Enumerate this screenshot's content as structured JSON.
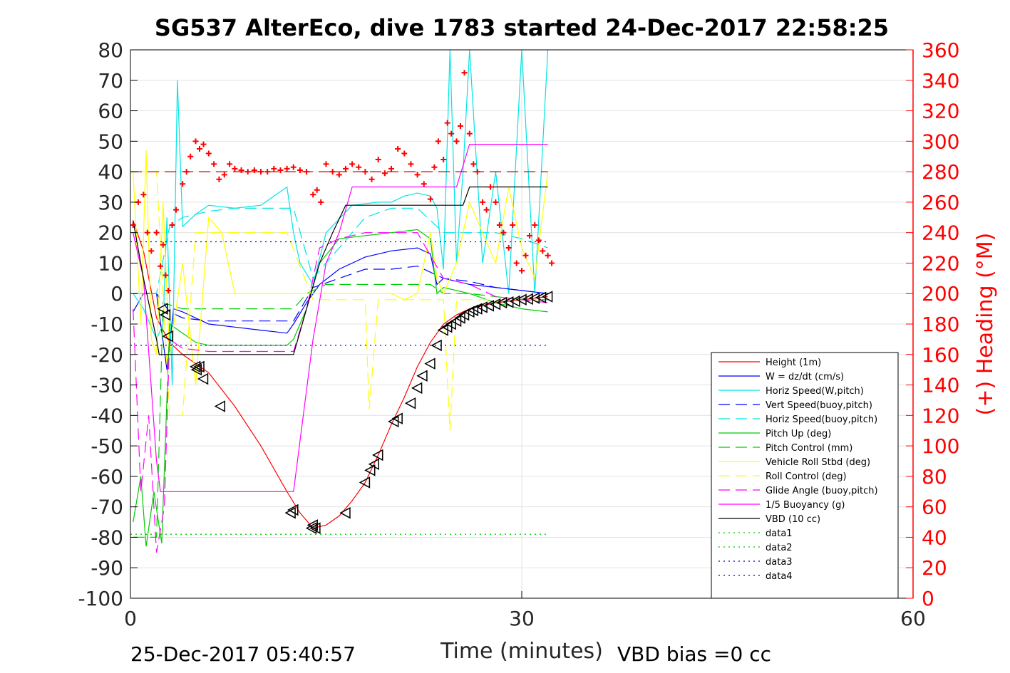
{
  "chart_data": {
    "type": "line",
    "title": "SG537 AlterEco, dive 1783 started 24-Dec-2017 22:58:25",
    "xlabel": "Time (minutes)",
    "ylabel_right": "(+) Heading (°M)",
    "footer_left": "25-Dec-2017 05:40:57",
    "footer_right": "VBD bias =0 cc",
    "xlim": [
      0,
      60
    ],
    "ylim": [
      -100,
      80
    ],
    "y2lim": [
      0,
      360
    ],
    "xticks": [
      "0",
      "30",
      "60"
    ],
    "xtick_values": [
      0,
      30,
      60
    ],
    "yticks": [
      "-100",
      "-90",
      "-80",
      "-70",
      "-60",
      "-50",
      "-40",
      "-30",
      "-20",
      "-10",
      "0",
      "10",
      "20",
      "30",
      "40",
      "50",
      "60",
      "70",
      "80"
    ],
    "ytick_values": [
      -100,
      -90,
      -80,
      -70,
      -60,
      -50,
      -40,
      -30,
      -20,
      -10,
      0,
      10,
      20,
      30,
      40,
      50,
      60,
      70,
      80
    ],
    "y2ticks": [
      "0",
      "20",
      "40",
      "60",
      "80",
      "100",
      "120",
      "140",
      "160",
      "180",
      "200",
      "220",
      "240",
      "260",
      "280",
      "300",
      "320",
      "340",
      "360"
    ],
    "y2tick_values": [
      0,
      20,
      40,
      60,
      80,
      100,
      120,
      140,
      160,
      180,
      200,
      220,
      240,
      260,
      280,
      300,
      320,
      340,
      360
    ],
    "grid": true,
    "legend_position": "bottom-right",
    "colors": {
      "height": "#ff0000",
      "w": "#0000ff",
      "horiz_speed": "#00e5e5",
      "pitch": "#00cc00",
      "roll": "#ffff00",
      "glide": "#ff00ff",
      "vbd": "#000000",
      "heading": "#ff0000",
      "right_axis": "#ff0000"
    },
    "series": [
      {
        "name": "Height (1m)",
        "color": "#ff0000",
        "style": "solid",
        "x": [
          0.2,
          1,
          2,
          3,
          4,
          6,
          8,
          10,
          12,
          13,
          14,
          15,
          16,
          17,
          18,
          19,
          20,
          21,
          22,
          23,
          24,
          25,
          26,
          27,
          28,
          29,
          30,
          31,
          32
        ],
        "y": [
          24,
          14,
          -8,
          -16,
          -20,
          -26,
          -37,
          -50,
          -65,
          -72,
          -77,
          -76,
          -73,
          -68,
          -62,
          -53,
          -43,
          -34,
          -24,
          -16,
          -10,
          -7,
          -5,
          -4,
          -3,
          -2.5,
          -2,
          -1.5,
          -1
        ]
      },
      {
        "name": "W = dz/dt (cm/s)",
        "color": "#0000ff",
        "style": "solid",
        "x": [
          0.2,
          1,
          2,
          2.8,
          3.3,
          4,
          6,
          8,
          10,
          12,
          12.5,
          13.5,
          14.5,
          16,
          18,
          20,
          22,
          23,
          23.5,
          24,
          25,
          26,
          28,
          30,
          32
        ],
        "y": [
          -6,
          0,
          0,
          -25,
          -5,
          -6,
          -10,
          -11,
          -12,
          -13,
          -10,
          -3,
          3,
          8,
          12,
          14,
          15,
          13,
          3,
          5,
          4,
          3,
          2,
          1,
          0
        ]
      },
      {
        "name": "Horiz Speed(W,pitch)",
        "color": "#00e5e5",
        "style": "solid",
        "x": [
          0.2,
          1,
          2,
          2.5,
          2.8,
          3.2,
          3.6,
          4,
          5,
          6,
          8,
          10,
          12,
          12.5,
          13,
          14,
          15,
          17,
          19,
          20,
          21,
          22,
          23,
          23.5,
          24,
          24.5,
          25,
          25.5,
          26,
          27,
          28,
          29,
          30,
          31,
          32
        ],
        "y": [
          0,
          -5,
          -15,
          -10,
          25,
          -30,
          70,
          22,
          26,
          29,
          28,
          29,
          35,
          20,
          10,
          3,
          20,
          29,
          30,
          30,
          32,
          33,
          32,
          28,
          8,
          80,
          10,
          40,
          80,
          10,
          40,
          0,
          80,
          0,
          80
        ]
      },
      {
        "name": "Vert Speed(buoy,pitch)",
        "color": "#0000ff",
        "style": "dash",
        "x": [
          0.2,
          2,
          3,
          4,
          6,
          8,
          10,
          12,
          12.5,
          14,
          16,
          18,
          20,
          22,
          24,
          26,
          28,
          30,
          32
        ],
        "y": [
          0,
          0,
          -6,
          -8,
          -9,
          -9,
          -9,
          -9,
          -9,
          2,
          5,
          8,
          8,
          9,
          5,
          4,
          2,
          1,
          0
        ]
      },
      {
        "name": "Horiz Speed(buoy,pitch)",
        "color": "#00e5e5",
        "style": "dash",
        "x": [
          0.2,
          2,
          3,
          4,
          6,
          8,
          10,
          12,
          12.5,
          14,
          16,
          18,
          20,
          22,
          24,
          26,
          28,
          30,
          32
        ],
        "y": [
          0,
          0,
          22,
          25,
          27,
          28,
          28,
          28,
          28,
          5,
          15,
          25,
          28,
          28,
          20,
          20,
          20,
          18,
          15
        ]
      },
      {
        "name": "Pitch Up (deg)",
        "color": "#00cc00",
        "style": "solid",
        "x": [
          0.2,
          0.8,
          1.2,
          1.8,
          2.4,
          3,
          4,
          5,
          6,
          8,
          10,
          12,
          12.5,
          13.5,
          14.5,
          16,
          18,
          20,
          22,
          23,
          23.5,
          24,
          26,
          28,
          30,
          32
        ],
        "y": [
          -75,
          -60,
          -83,
          -65,
          -82,
          -10,
          -13,
          -16,
          -17,
          -17,
          -17,
          -17,
          -15,
          -5,
          10,
          18,
          19,
          20,
          21,
          18,
          0,
          2,
          0,
          -3,
          -5,
          -6
        ]
      },
      {
        "name": "Pitch Control (mm)",
        "color": "#00cc00",
        "style": "dash",
        "x": [
          0.2,
          2,
          2.5,
          4,
          6,
          8,
          10,
          12,
          12.5,
          13.5,
          15,
          17,
          19,
          21,
          23,
          24,
          26,
          28,
          30,
          32
        ],
        "y": [
          -80,
          -80,
          -3,
          -5,
          -5,
          -5,
          -5,
          -5,
          -5,
          0,
          3,
          3,
          3,
          3,
          3,
          0,
          0,
          -1,
          -2,
          -2
        ]
      },
      {
        "name": "Vehicle Roll Stbd (deg)",
        "color": "#ffff00",
        "style": "solid",
        "x": [
          0.2,
          0.8,
          1.2,
          1.6,
          2,
          2.5,
          3,
          4,
          5,
          6,
          7,
          8,
          10,
          12,
          13,
          14,
          15,
          17,
          18,
          19,
          20,
          21,
          22,
          23,
          23.5,
          24,
          25,
          26,
          27,
          28,
          29,
          30,
          31,
          32
        ],
        "y": [
          40,
          -10,
          47,
          -15,
          -20,
          30,
          -20,
          10,
          -30,
          25,
          20,
          0,
          0,
          0,
          0,
          0,
          0,
          0,
          0,
          0,
          0,
          -2,
          0,
          20,
          5,
          0,
          10,
          30,
          20,
          10,
          35,
          15,
          5,
          40
        ]
      },
      {
        "name": "Roll Control (deg)",
        "color": "#ffff00",
        "style": "dash",
        "x": [
          0.2,
          2,
          3,
          4,
          5,
          6,
          8,
          10,
          12,
          14,
          16,
          18,
          18.3,
          19,
          20,
          22,
          24,
          24.5,
          25,
          26,
          28,
          30,
          32
        ],
        "y": [
          40,
          40,
          -40,
          -40,
          20,
          20,
          20,
          20,
          20,
          -2,
          -2,
          -2,
          -38,
          -2,
          -2,
          -2,
          -2,
          -45,
          -2,
          -2,
          -2,
          -2,
          -2
        ]
      },
      {
        "name": "Glide Angle (buoy,pitch)",
        "color": "#ff00ff",
        "style": "dash",
        "x": [
          0.2,
          0.8,
          1.4,
          2,
          2.6,
          3,
          4,
          6,
          8,
          10,
          12,
          12.5,
          13.5,
          14.5,
          16,
          18,
          20,
          22,
          24,
          26,
          28,
          30,
          32
        ],
        "y": [
          -5,
          -65,
          -40,
          -85,
          -70,
          -15,
          -18,
          -19,
          -19,
          -19,
          -19,
          -19,
          -5,
          15,
          18,
          20,
          20,
          20,
          5,
          3,
          -1,
          -2,
          -3
        ]
      },
      {
        "name": "1/5 Buoyancy (g)",
        "color": "#ff00ff",
        "style": "solid",
        "x": [
          0.2,
          1,
          2,
          2.3,
          3,
          4,
          6,
          8,
          10,
          12,
          12.5,
          14,
          15,
          16,
          17,
          18,
          20,
          22,
          24,
          25,
          26,
          27,
          28,
          30,
          32
        ],
        "y": [
          20,
          5,
          -55,
          -65,
          -65,
          -65,
          -65,
          -65,
          -65,
          -65,
          -65,
          -15,
          10,
          20,
          35,
          35,
          35,
          35,
          35,
          35,
          49,
          49,
          49,
          49,
          49
        ]
      },
      {
        "name": "VBD (10 cc)",
        "color": "#000000",
        "style": "solid",
        "x": [
          0.2,
          1,
          2,
          2.2,
          4,
          6,
          8,
          10,
          12,
          12.5,
          13.5,
          14.5,
          15.5,
          16.5,
          17,
          18,
          20,
          22,
          24,
          25,
          25.5,
          26,
          26.5,
          28,
          30,
          32
        ],
        "y": [
          24,
          5,
          -15,
          -20,
          -20,
          -20,
          -20,
          -20,
          -20,
          -20,
          -5,
          10,
          20,
          29,
          29,
          29,
          29,
          29,
          29,
          29,
          29,
          35,
          35,
          35,
          35,
          35
        ]
      },
      {
        "name": "data1",
        "color": "#00cc00",
        "style": "dot",
        "x": [
          0,
          32
        ],
        "y": [
          -79,
          -79
        ]
      },
      {
        "name": "data2",
        "color": "#00cc00",
        "style": "dot",
        "x": [
          0,
          32
        ],
        "y": [
          -79,
          -79
        ]
      },
      {
        "name": "data3",
        "color": "#0000cc",
        "style": "dot",
        "x": [
          0,
          32
        ],
        "y": [
          17,
          17
        ]
      },
      {
        "name": "data4",
        "color": "#0000cc",
        "style": "dot",
        "x": [
          0,
          32
        ],
        "y": [
          -17,
          -17
        ]
      }
    ],
    "extra_lines": [
      {
        "color": "#cc0000",
        "style": "dash",
        "axis": "right",
        "x": [
          0,
          32
        ],
        "y": [
          280,
          280
        ]
      }
    ],
    "heading_points": {
      "color": "#ff0000",
      "marker": "+",
      "x": [
        0.2,
        0.6,
        1,
        1.3,
        1.6,
        2,
        2.3,
        2.5,
        2.7,
        2.9,
        3.2,
        3.5,
        4,
        4.3,
        4.6,
        5,
        5.3,
        5.6,
        6,
        6.4,
        6.8,
        7.2,
        7.6,
        8,
        8.5,
        9,
        9.5,
        10,
        10.5,
        11,
        11.5,
        12,
        12.5,
        13,
        13.5,
        14,
        14.3,
        14.6,
        15,
        15.5,
        16,
        16.5,
        17,
        17.5,
        18,
        18.5,
        19,
        19.5,
        20,
        20.5,
        21,
        21.5,
        22,
        22.5,
        23,
        23.3,
        23.6,
        24,
        24.3,
        24.6,
        25,
        25.3,
        25.6,
        26,
        26.3,
        26.6,
        27,
        27.3,
        27.6,
        28,
        28.3,
        28.6,
        29,
        29.3,
        29.6,
        30,
        30.3,
        30.6,
        31,
        31.3,
        31.6,
        32,
        32.3
      ],
      "y": [
        245,
        260,
        265,
        240,
        228,
        240,
        218,
        232,
        212,
        202,
        245,
        255,
        272,
        280,
        290,
        300,
        295,
        298,
        292,
        285,
        275,
        278,
        285,
        282,
        281,
        280,
        281,
        280,
        280,
        282,
        281,
        282,
        283,
        281,
        280,
        265,
        268,
        260,
        285,
        280,
        278,
        282,
        285,
        283,
        280,
        275,
        288,
        279,
        282,
        295,
        292,
        285,
        278,
        272,
        262,
        283,
        300,
        288,
        312,
        305,
        300,
        310,
        345,
        305,
        285,
        280,
        260,
        255,
        270,
        260,
        245,
        240,
        230,
        245,
        220,
        215,
        225,
        238,
        245,
        235,
        228,
        225,
        220
      ]
    },
    "markers": {
      "color": "#000000",
      "symbol": "triangle",
      "x": [
        2.5,
        2.7,
        2.9,
        5,
        5.1,
        5.3,
        5.6,
        6.9,
        12.3,
        12.5,
        13.9,
        14,
        14.2,
        16.5,
        18,
        18.4,
        18.7,
        19,
        20.2,
        20.5,
        21.5,
        22,
        22.4,
        23,
        23.5,
        24,
        24.3,
        24.6,
        25,
        25.3,
        25.6,
        26,
        26.3,
        26.6,
        27,
        27.5,
        28,
        28.5,
        29,
        29.5,
        30,
        30.5,
        31,
        31.5,
        32
      ],
      "y": [
        -5,
        -7,
        -14,
        -24,
        -25,
        -24,
        -28,
        -37,
        -72,
        -71,
        -77,
        -76,
        -77,
        -72,
        -62,
        -58,
        -56,
        -53,
        -42,
        -41,
        -36,
        -31,
        -27,
        -23,
        -17,
        -12,
        -11,
        -10,
        -9,
        -8,
        -7,
        -6,
        -5.5,
        -5,
        -4.5,
        -4,
        -3.5,
        -3,
        -2.8,
        -2.5,
        -2,
        -1.8,
        -1.5,
        -1.3,
        -1
      ]
    }
  }
}
